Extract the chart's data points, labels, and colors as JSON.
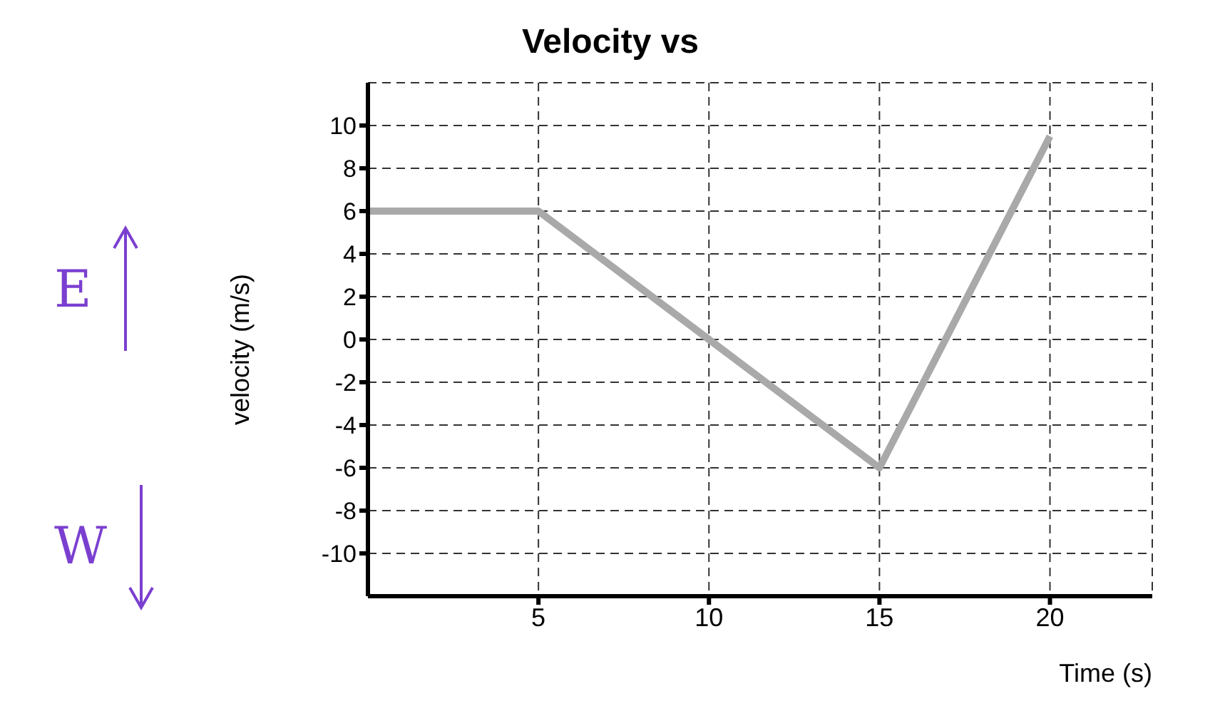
{
  "chart_data": {
    "type": "line",
    "title": "Velocity vs",
    "xlabel": "Time (s)",
    "ylabel": "velocity (m/s)",
    "x": [
      0,
      5,
      15,
      20
    ],
    "series": [
      {
        "color": "#a9a9a9",
        "values": [
          6,
          6,
          -6,
          9.5
        ]
      }
    ],
    "xlim": [
      0,
      23
    ],
    "ylim": [
      -12,
      12
    ],
    "xticks": [
      5,
      10,
      15,
      20
    ],
    "yticks": [
      -10,
      -8,
      -6,
      -4,
      -2,
      0,
      2,
      4,
      6,
      8,
      10
    ],
    "grid": true,
    "marker": "none",
    "line_style": "solid",
    "annotations": [
      "E",
      "W"
    ]
  }
}
